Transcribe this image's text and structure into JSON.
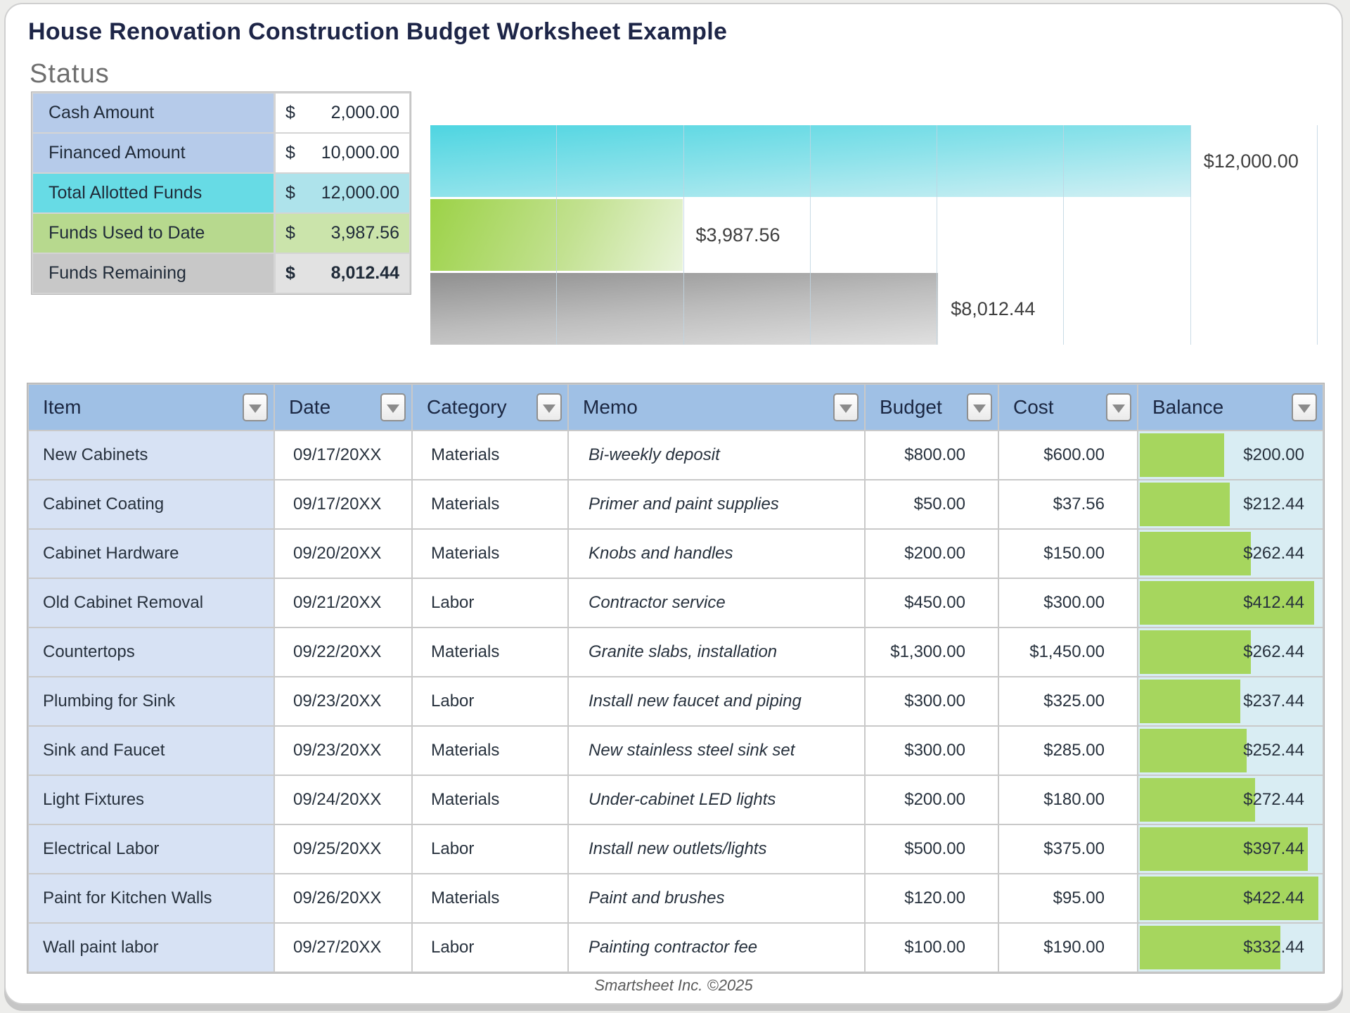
{
  "page": {
    "title": "House Renovation Construction Budget Worksheet Example",
    "section_heading": "Status",
    "footer": "Smartsheet Inc. ©2025"
  },
  "colors": {
    "header_blue": "#9fc0e5",
    "item_column_blue": "#d7e2f4",
    "balance_cell_cyan": "#d9edf3",
    "balance_bar_green": "#a6d65e",
    "status_blue": "#b6cbea",
    "status_cyan": "#67dbe5",
    "status_green": "#b7d98e",
    "status_gray": "#c8c8c8",
    "title_navy": "#1d2547"
  },
  "status_table": {
    "rows": [
      {
        "label": "Cash Amount",
        "currency": "$",
        "value": "2,000.00",
        "style": "blue",
        "bold": false
      },
      {
        "label": "Financed Amount",
        "currency": "$",
        "value": "10,000.00",
        "style": "blue",
        "bold": false
      },
      {
        "label": "Total Allotted Funds",
        "currency": "$",
        "value": "12,000.00",
        "style": "cyan",
        "bold": false
      },
      {
        "label": "Funds Used to Date",
        "currency": "$",
        "value": "3,987.56",
        "style": "green",
        "bold": false
      },
      {
        "label": "Funds Remaining",
        "currency": "$",
        "value": "8,012.44",
        "style": "gray",
        "bold": true
      }
    ]
  },
  "chart_data": {
    "type": "bar",
    "orientation": "horizontal",
    "title": "",
    "xlabel": "",
    "ylabel": "",
    "xlim": [
      0,
      14000
    ],
    "gridline_interval": 2000,
    "grid": true,
    "legend": false,
    "series": [
      {
        "name": "Total Allotted Funds",
        "value": 12000.0,
        "label": "$12,000.00",
        "color": "cyan"
      },
      {
        "name": "Funds Used to Date",
        "value": 3987.56,
        "label": "$3,987.56",
        "color": "green"
      },
      {
        "name": "Funds Remaining",
        "value": 8012.44,
        "label": "$8,012.44",
        "color": "gray"
      }
    ]
  },
  "budget_table": {
    "columns": [
      "Item",
      "Date",
      "Category",
      "Memo",
      "Budget",
      "Cost",
      "Balance"
    ],
    "balance_bar_max": 422.44,
    "rows": [
      {
        "item": "New Cabinets",
        "date": "09/17/20XX",
        "category": "Materials",
        "memo": "Bi-weekly deposit",
        "budget": "$800.00",
        "cost": "$600.00",
        "balance": "$200.00",
        "balance_value": 200.0
      },
      {
        "item": "Cabinet Coating",
        "date": "09/17/20XX",
        "category": "Materials",
        "memo": "Primer and paint supplies",
        "budget": "$50.00",
        "cost": "$37.56",
        "balance": "$212.44",
        "balance_value": 212.44
      },
      {
        "item": "Cabinet Hardware",
        "date": "09/20/20XX",
        "category": "Materials",
        "memo": "Knobs and handles",
        "budget": "$200.00",
        "cost": "$150.00",
        "balance": "$262.44",
        "balance_value": 262.44
      },
      {
        "item": "Old Cabinet Removal",
        "date": "09/21/20XX",
        "category": "Labor",
        "memo": "Contractor service",
        "budget": "$450.00",
        "cost": "$300.00",
        "balance": "$412.44",
        "balance_value": 412.44
      },
      {
        "item": "Countertops",
        "date": "09/22/20XX",
        "category": "Materials",
        "memo": "Granite slabs, installation",
        "budget": "$1,300.00",
        "cost": "$1,450.00",
        "balance": "$262.44",
        "balance_value": 262.44
      },
      {
        "item": "Plumbing for Sink",
        "date": "09/23/20XX",
        "category": "Labor",
        "memo": "Install new faucet and piping",
        "budget": "$300.00",
        "cost": "$325.00",
        "balance": "$237.44",
        "balance_value": 237.44
      },
      {
        "item": "Sink and Faucet",
        "date": "09/23/20XX",
        "category": "Materials",
        "memo": "New stainless steel sink set",
        "budget": "$300.00",
        "cost": "$285.00",
        "balance": "$252.44",
        "balance_value": 252.44
      },
      {
        "item": "Light Fixtures",
        "date": "09/24/20XX",
        "category": "Materials",
        "memo": "Under-cabinet LED lights",
        "budget": "$200.00",
        "cost": "$180.00",
        "balance": "$272.44",
        "balance_value": 272.44
      },
      {
        "item": "Electrical Labor",
        "date": "09/25/20XX",
        "category": "Labor",
        "memo": "Install new outlets/lights",
        "budget": "$500.00",
        "cost": "$375.00",
        "balance": "$397.44",
        "balance_value": 397.44
      },
      {
        "item": "Paint for Kitchen Walls",
        "date": "09/26/20XX",
        "category": "Materials",
        "memo": "Paint and brushes",
        "budget": "$120.00",
        "cost": "$95.00",
        "balance": "$422.44",
        "balance_value": 422.44
      },
      {
        "item": "Wall paint labor",
        "date": "09/27/20XX",
        "category": "Labor",
        "memo": "Painting contractor fee",
        "budget": "$100.00",
        "cost": "$190.00",
        "balance": "$332.44",
        "balance_value": 332.44
      }
    ]
  }
}
